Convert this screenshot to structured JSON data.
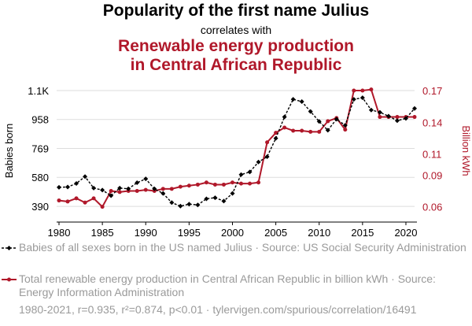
{
  "header": {
    "title": "Popularity of the first name Julius",
    "subtitle": "correlates with",
    "title2_line1": "Renewable energy production",
    "title2_line2": "in Central African Republic"
  },
  "legend": {
    "series1": "Babies of all sexes born in the US named Julius · Source: US Social Security Administration",
    "series2": "Total renewable energy production in Central African Republic in billion kWh · Source: Energy Information Administration"
  },
  "footer": "1980-2021, r=0.935, r²=0.874, p<0.01 · tylervigen.com/spurious/correlation/16491",
  "colors": {
    "series1": "#000000",
    "series2": "#b0182a",
    "grid": "#dddddd"
  },
  "chart_data": {
    "type": "line",
    "x": [
      1980,
      1981,
      1982,
      1983,
      1984,
      1985,
      1986,
      1987,
      1988,
      1989,
      1990,
      1991,
      1992,
      1993,
      1994,
      1995,
      1996,
      1997,
      1998,
      1999,
      2000,
      2001,
      2002,
      2003,
      2004,
      2005,
      2006,
      2007,
      2008,
      2009,
      2010,
      2011,
      2012,
      2013,
      2014,
      2015,
      2016,
      2017,
      2018,
      2019,
      2020,
      2021
    ],
    "xticks": [
      1980,
      1985,
      1990,
      1995,
      2000,
      2005,
      2010,
      2015,
      2020
    ],
    "xlim": [
      1980,
      2021
    ],
    "series": [
      {
        "name": "Babies of all sexes born in the US named Julius",
        "axis": "left",
        "values": [
          515,
          517,
          540,
          585,
          510,
          497,
          460,
          510,
          505,
          545,
          570,
          505,
          475,
          415,
          392,
          405,
          400,
          440,
          447,
          425,
          475,
          598,
          615,
          680,
          715,
          835,
          975,
          1090,
          1075,
          1010,
          945,
          888,
          960,
          920,
          1090,
          1100,
          1020,
          1005,
          980,
          950,
          965,
          1030
        ]
      },
      {
        "name": "Total renewable energy production in Central African Republic in billion kWh",
        "axis": "right",
        "values": [
          0.066,
          0.065,
          0.068,
          0.064,
          0.068,
          0.06,
          0.075,
          0.074,
          0.075,
          0.075,
          0.076,
          0.075,
          0.077,
          0.077,
          0.079,
          0.08,
          0.081,
          0.083,
          0.081,
          0.081,
          0.083,
          0.082,
          0.082,
          0.083,
          0.121,
          0.13,
          0.135,
          0.132,
          0.132,
          0.131,
          0.131,
          0.141,
          0.144,
          0.133,
          0.17,
          0.17,
          0.171,
          0.145,
          0.145,
          0.145,
          0.145,
          0.145
        ]
      }
    ],
    "yleft": {
      "label": "Babies born",
      "ticks": [
        "1.1K",
        "958",
        "769",
        "580",
        "390"
      ],
      "tick_values": [
        1147,
        958,
        769,
        580,
        390
      ],
      "lim": [
        360,
        1147
      ]
    },
    "yright": {
      "label": "Billion kWh",
      "ticks": [
        "0.17",
        "0.14",
        "0.11",
        "0.09",
        "0.06"
      ],
      "tick_values": [
        0.17,
        0.14,
        0.11,
        0.09,
        0.06
      ],
      "lim": [
        0.056,
        0.17
      ]
    },
    "grid": true
  }
}
